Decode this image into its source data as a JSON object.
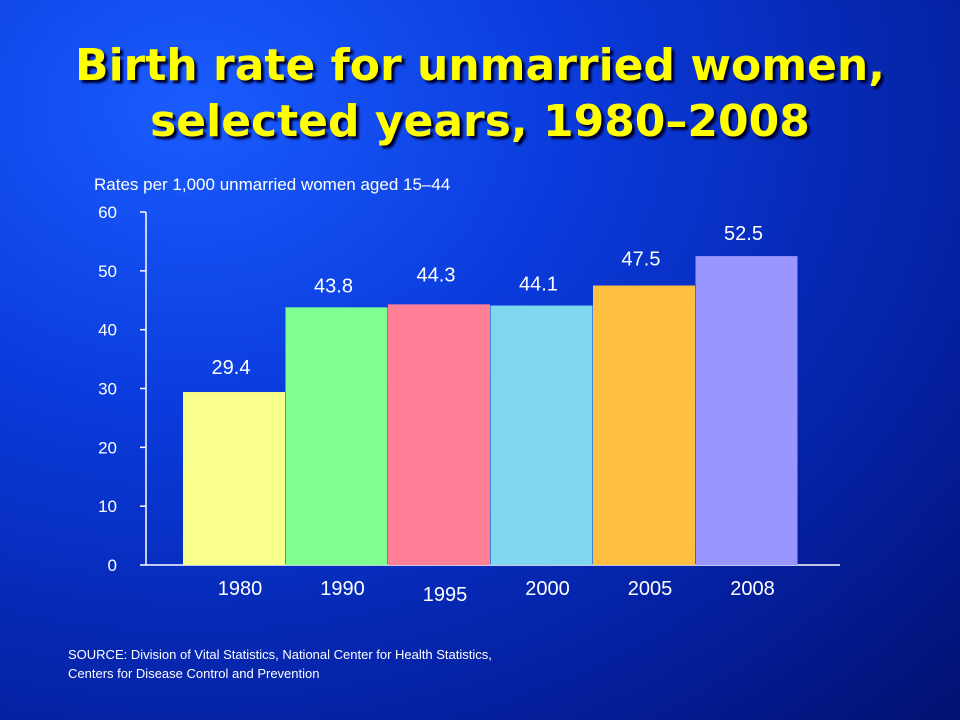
{
  "chart_data": {
    "type": "bar",
    "title_lines": [
      "Birth rate for unmarried women,",
      "selected years, 1980–2008"
    ],
    "ylabel": "Rates per 1,000 unmarried women aged 15–44",
    "xlabel": "",
    "categories": [
      "1980",
      "1990",
      "1995",
      "2000",
      "2005",
      "2008"
    ],
    "values": [
      29.4,
      43.8,
      44.3,
      44.1,
      47.5,
      52.5
    ],
    "value_labels": [
      "29.4",
      "43.8",
      "44.3",
      "44.1",
      "47.5",
      "52.5"
    ],
    "bar_colors": [
      "#f8ff8c",
      "#7fff8f",
      "#ff8096",
      "#7fd8f0",
      "#ffbf40",
      "#9a96ff"
    ],
    "ylim": [
      0,
      60
    ],
    "yticks": [
      0,
      10,
      20,
      30,
      40,
      50,
      60
    ],
    "grid": false,
    "legend": "none"
  },
  "source": {
    "lines": [
      "SOURCE: Division of Vital Statistics, National Center for Health Statistics,",
      "Centers for Disease Control and Prevention"
    ]
  }
}
